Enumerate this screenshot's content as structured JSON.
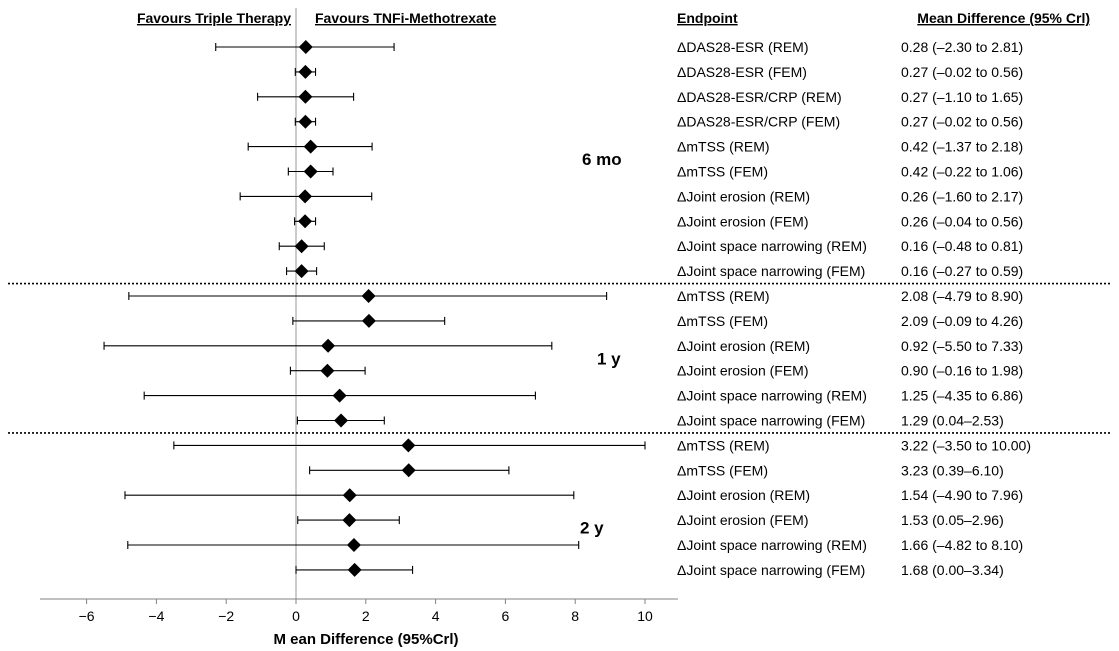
{
  "chart_data": {
    "type": "forest",
    "xlabel": "M ean Difference (95%Crl)",
    "xlim": [
      -6,
      11
    ],
    "xticks": [
      -6,
      -4,
      -2,
      0,
      2,
      4,
      6,
      8,
      10
    ],
    "direction_labels": {
      "left": "Favours Triple Therapy",
      "right": "Favours TNFi-Methotrexate"
    },
    "columns": {
      "endpoint": "Endpoint",
      "estimate": "Mean Difference (95% Crl)"
    },
    "groups": [
      {
        "label": "6 mo",
        "rows": [
          {
            "endpoint": "ΔDAS28-ESR (REM)",
            "mean": 0.28,
            "lo": -2.3,
            "hi": 2.81,
            "text": "0.28 (–2.30 to 2.81)"
          },
          {
            "endpoint": "ΔDAS28-ESR (FEM)",
            "mean": 0.27,
            "lo": -0.02,
            "hi": 0.56,
            "text": "0.27 (–0.02 to 0.56)"
          },
          {
            "endpoint": "ΔDAS28-ESR/CRP (REM)",
            "mean": 0.27,
            "lo": -1.1,
            "hi": 1.65,
            "text": "0.27 (–1.10 to 1.65)"
          },
          {
            "endpoint": "ΔDAS28-ESR/CRP (FEM)",
            "mean": 0.27,
            "lo": -0.02,
            "hi": 0.56,
            "text": "0.27 (–0.02 to 0.56)"
          },
          {
            "endpoint": "ΔmTSS (REM)",
            "mean": 0.42,
            "lo": -1.37,
            "hi": 2.18,
            "text": "0.42 (–1.37 to 2.18)"
          },
          {
            "endpoint": "ΔmTSS (FEM)",
            "mean": 0.42,
            "lo": -0.22,
            "hi": 1.06,
            "text": "0.42 (–0.22 to 1.06)"
          },
          {
            "endpoint": "ΔJoint erosion (REM)",
            "mean": 0.26,
            "lo": -1.6,
            "hi": 2.17,
            "text": "0.26 (–1.60 to 2.17)"
          },
          {
            "endpoint": "ΔJoint erosion  (FEM)",
            "mean": 0.26,
            "lo": -0.04,
            "hi": 0.56,
            "text": "0.26 (–0.04 to 0.56)"
          },
          {
            "endpoint": "ΔJoint space narrowing (REM)",
            "mean": 0.16,
            "lo": -0.48,
            "hi": 0.81,
            "text": "0.16 (–0.48 to 0.81)"
          },
          {
            "endpoint": "ΔJoint space narrowing (FEM)",
            "mean": 0.16,
            "lo": -0.27,
            "hi": 0.59,
            "text": "0.16 (–0.27 to 0.59)"
          }
        ]
      },
      {
        "label": "1 y",
        "rows": [
          {
            "endpoint": "ΔmTSS (REM)",
            "mean": 2.08,
            "lo": -4.79,
            "hi": 8.9,
            "text": "2.08 (–4.79 to 8.90)"
          },
          {
            "endpoint": "ΔmTSS (FEM)",
            "mean": 2.09,
            "lo": -0.09,
            "hi": 4.26,
            "text": "2.09 (–0.09 to 4.26)"
          },
          {
            "endpoint": "ΔJoint erosion (REM)",
            "mean": 0.92,
            "lo": -5.5,
            "hi": 7.33,
            "text": "0.92 (–5.50 to 7.33)"
          },
          {
            "endpoint": "ΔJoint erosion  (FEM)",
            "mean": 0.9,
            "lo": -0.16,
            "hi": 1.98,
            "text": "0.90 (–0.16 to 1.98)"
          },
          {
            "endpoint": "ΔJoint space narrowing (REM)",
            "mean": 1.25,
            "lo": -4.35,
            "hi": 6.86,
            "text": "1.25 (–4.35 to 6.86)"
          },
          {
            "endpoint": "ΔJoint space narrowing (FEM)",
            "mean": 1.29,
            "lo": 0.04,
            "hi": 2.53,
            "text": "1.29 (0.04–2.53)"
          }
        ]
      },
      {
        "label": "2 y",
        "rows": [
          {
            "endpoint": "ΔmTSS (REM)",
            "mean": 3.22,
            "lo": -3.5,
            "hi": 10.0,
            "text": "3.22 (–3.50 to 10.00)"
          },
          {
            "endpoint": "ΔmTSS (FEM)",
            "mean": 3.23,
            "lo": 0.39,
            "hi": 6.1,
            "text": "3.23 (0.39–6.10)"
          },
          {
            "endpoint": "ΔJoint erosion (REM)",
            "mean": 1.54,
            "lo": -4.9,
            "hi": 7.96,
            "text": "1.54 (–4.90 to 7.96)"
          },
          {
            "endpoint": "ΔJoint erosion  (FEM)",
            "mean": 1.53,
            "lo": 0.05,
            "hi": 2.96,
            "text": "1.53 (0.05–2.96)"
          },
          {
            "endpoint": "ΔJoint space narrowing (REM)",
            "mean": 1.66,
            "lo": -4.82,
            "hi": 8.1,
            "text": "1.66 (–4.82 to 8.10)"
          },
          {
            "endpoint": "ΔJoint space narrowing (FEM)",
            "mean": 1.68,
            "lo": 0.0,
            "hi": 3.34,
            "text": "1.68 (0.00–3.34)"
          }
        ]
      }
    ],
    "reference_line": 0,
    "colors": {
      "marker": "#000000",
      "line": "#000000",
      "reference": "#999999",
      "separator": "#000000"
    },
    "grid": false
  }
}
